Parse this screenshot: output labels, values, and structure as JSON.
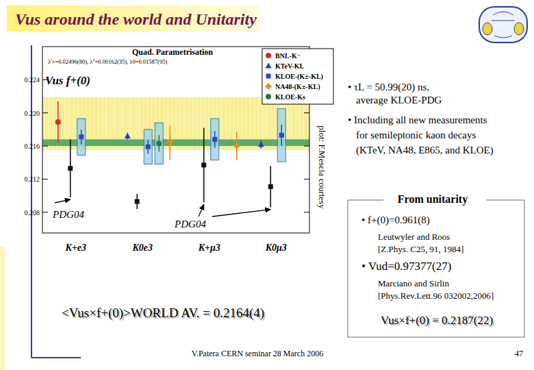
{
  "slide": {
    "title": "Vus around the world and Unitarity",
    "bullets": [
      "• τL = 50.99(20) ns,",
      "average KLOE-PDG",
      "• Including all new measurements",
      "for semileptonic kaon decays",
      "(KTeV, NA48, E865, and KLOE)"
    ],
    "unitarity_box": {
      "heading": "From unitarity",
      "items": [
        "• f+(0)=0.961(8)",
        "Leutwyler and Roos",
        "[Z.Phys. C25, 91, 1984]",
        "• Vud=0.97377(27)",
        "Marciano and Sirlin",
        "[Phys.Rev.Lett.96 032002,2006]"
      ],
      "result": "Vus×f+(0) = 0.2187(22)"
    },
    "world_average": "<Vus×f+(0)>WORLD AV. = 0.2164(4)",
    "footer": "V.Patera CERN seminar 28 March 2006",
    "page": "47"
  },
  "chart_data": {
    "type": "scatter",
    "title": "Quad. Parametrisation",
    "subtitle": "λ'+=0.02496(80), λ''=0.00162(35), λ0=0.01587(95)",
    "y_label": "Vus f+(0)",
    "categories": [
      "K+e3",
      "K0e3",
      "K+μ3",
      "K0μ3"
    ],
    "ylim": [
      0.2055,
      0.228
    ],
    "yticks": [
      0.208,
      0.212,
      0.216,
      {
        "value": 0.22,
        "label": "0.220"
      },
      0.224
    ],
    "unitarity_band": [
      0.2155,
      0.2219
    ],
    "average_band": [
      0.216,
      0.2168
    ],
    "legend": "top-right",
    "grid": false,
    "series": [
      {
        "name": "BNL-K⁻",
        "color": "#e3261c",
        "marker": "circle",
        "line_style": "solid",
        "values": [
          0.2189,
          null,
          null,
          null
        ],
        "errors": [
          0.0025,
          null,
          null,
          null
        ]
      },
      {
        "name": "KTeV-KL",
        "color": "#2238d0",
        "marker": "triangle",
        "line_style": "solid",
        "values": [
          null,
          0.2172,
          null,
          0.2162
        ],
        "errors": [
          null,
          0.0004,
          null,
          0.0005
        ]
      },
      {
        "name": "KLOE-(K±-KL)",
        "color": "#2a45c8",
        "marker": "square",
        "line_style": "box",
        "values": [
          0.2171,
          0.2159,
          0.2168,
          0.2173
        ],
        "errors": [
          0.0022,
          0.0021,
          0.0025,
          0.0032
        ]
      },
      {
        "name": "NA48-(K±-KL)",
        "color": "#f08a24",
        "marker": "diamond",
        "line_style": "solid",
        "values": [
          null,
          0.2164,
          0.216,
          null
        ],
        "errors": [
          null,
          0.0021,
          0.0017,
          null
        ]
      },
      {
        "name": "KLOE-Ks",
        "color": "#1f7a4c",
        "marker": "circle",
        "line_style": "box",
        "values": [
          null,
          0.2163,
          null,
          null
        ],
        "errors": [
          null,
          0.0025,
          null,
          null
        ]
      },
      {
        "color": "#111111",
        "marker": "square",
        "line_style": "solid",
        "values": [
          0.2133,
          0.2093,
          0.2137,
          0.2111
        ],
        "errors": [
          0.0035,
          0.0009,
          0.0045,
          0.0025
        ]
      }
    ],
    "annotations": [
      {
        "text": "PDG04"
      },
      {
        "text": "PDG04"
      }
    ],
    "credit": "plot: F.Mescia courtesy"
  }
}
